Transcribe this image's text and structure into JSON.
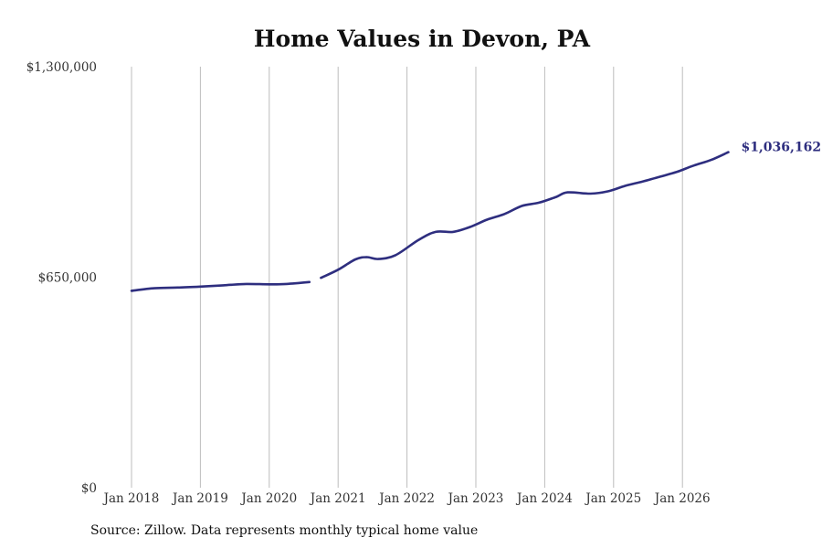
{
  "chart_data": {
    "type": "line",
    "title": "Home Values in Devon, PA",
    "source_note": "Source: Zillow. Data represents monthly typical home value",
    "ylim": [
      0,
      1300000
    ],
    "y_ticks": [
      {
        "value": 0,
        "label": "$0"
      },
      {
        "value": 650000,
        "label": "$650,000"
      },
      {
        "value": 1300000,
        "label": "$1,300,000"
      }
    ],
    "x_ticks": [
      {
        "value": "2018-01",
        "label": "Jan 2018"
      },
      {
        "value": "2019-01",
        "label": "Jan 2019"
      },
      {
        "value": "2020-01",
        "label": "Jan 2020"
      },
      {
        "value": "2021-01",
        "label": "Jan 2021"
      },
      {
        "value": "2022-01",
        "label": "Jan 2022"
      },
      {
        "value": "2023-01",
        "label": "Jan 2023"
      },
      {
        "value": "2024-01",
        "label": "Jan 2024"
      },
      {
        "value": "2025-01",
        "label": "Jan 2025"
      },
      {
        "value": "2026-01",
        "label": "Jan 2026"
      }
    ],
    "grid": {
      "vertical": true,
      "horizontal": false
    },
    "line_color": "#2e2e7f",
    "series": [
      {
        "segments": [
          [
            [
              "2018-01",
              608000
            ],
            [
              "2018-05",
              616000
            ],
            [
              "2018-09",
              618000
            ],
            [
              "2019-01",
              621000
            ],
            [
              "2019-05",
              625000
            ],
            [
              "2019-09",
              629000
            ],
            [
              "2020-01",
              628000
            ],
            [
              "2020-04",
              629000
            ],
            [
              "2020-08",
              635000
            ]
          ],
          [
            [
              "2020-10",
              648000
            ],
            [
              "2021-01",
              673000
            ],
            [
              "2021-04",
              705000
            ],
            [
              "2021-06",
              712000
            ],
            [
              "2021-08",
              706000
            ],
            [
              "2021-11",
              718000
            ],
            [
              "2022-03",
              765000
            ],
            [
              "2022-06",
              790000
            ],
            [
              "2022-09",
              790000
            ],
            [
              "2022-12",
              805000
            ],
            [
              "2023-03",
              828000
            ],
            [
              "2023-06",
              845000
            ],
            [
              "2023-09",
              870000
            ],
            [
              "2023-12",
              880000
            ],
            [
              "2024-03",
              898000
            ],
            [
              "2024-05",
              912000
            ],
            [
              "2024-09",
              908000
            ],
            [
              "2024-12",
              915000
            ],
            [
              "2025-03",
              932000
            ],
            [
              "2025-06",
              945000
            ],
            [
              "2025-09",
              960000
            ],
            [
              "2025-12",
              975000
            ],
            [
              "2026-03",
              995000
            ],
            [
              "2026-06",
              1012000
            ],
            [
              "2026-09",
              1036162
            ]
          ]
        ]
      }
    ],
    "end_label": "$1,036,162"
  }
}
